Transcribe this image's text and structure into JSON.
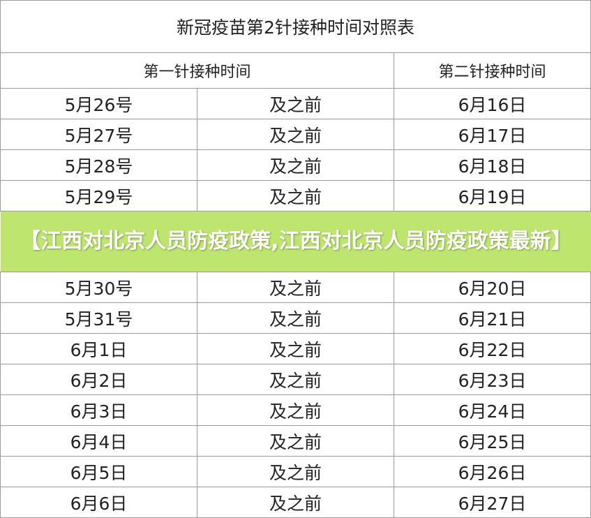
{
  "title": "新冠疫苗第2针接种时间对照表",
  "headers": {
    "first": "第一针接种时间",
    "second": "第二针接种时间"
  },
  "rows": [
    {
      "first": "5月26号",
      "mid": "及之前",
      "second": "6月16日"
    },
    {
      "first": "5月27号",
      "mid": "及之前",
      "second": "6月17日"
    },
    {
      "first": "5月28号",
      "mid": "及之前",
      "second": "6月18日"
    },
    {
      "first": "5月29号",
      "mid": "及之前",
      "second": "6月19日"
    },
    {
      "first": "5月30号",
      "mid": "及之前",
      "second": "6月20日"
    },
    {
      "first": "5月31号",
      "mid": "及之前",
      "second": "6月21日"
    },
    {
      "first": "6月1日",
      "mid": "及之前",
      "second": "6月22日"
    },
    {
      "first": "6月2日",
      "mid": "及之前",
      "second": "6月23日"
    },
    {
      "first": "6月3日",
      "mid": "及之前",
      "second": "6月24日"
    },
    {
      "first": "6月4日",
      "mid": "及之前",
      "second": "6月25日"
    },
    {
      "first": "6月5日",
      "mid": "及之前",
      "second": "6月26日"
    },
    {
      "first": "6月6日",
      "mid": "及之前",
      "second": "6月27日"
    }
  ],
  "banner": {
    "text": "【江西对北京人员防疫政策,江西对北京人员防疫政策最新】",
    "color": "#bee66e"
  }
}
